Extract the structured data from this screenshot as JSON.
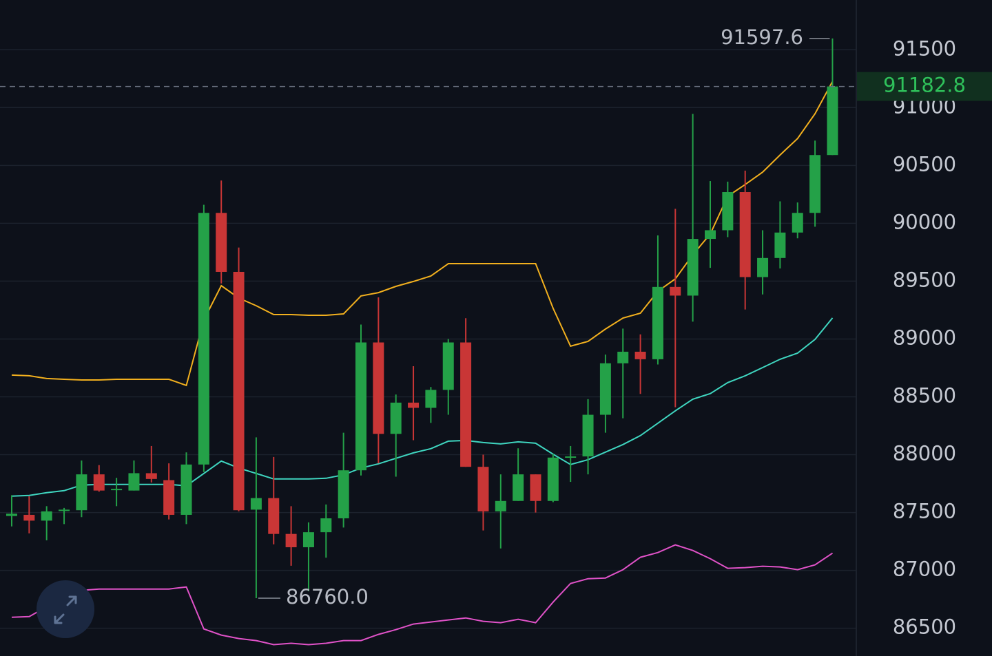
{
  "chart_data": {
    "type": "candlestick",
    "open": [
      87470,
      87480,
      87430,
      87520,
      87520,
      87830,
      87700,
      87690,
      87840,
      87780,
      87480,
      87915,
      90090,
      89580,
      87525,
      87625,
      87315,
      87200,
      87330,
      87450,
      87865,
      88970,
      88180,
      88450,
      88405,
      88560,
      88970,
      87895,
      87510,
      87600,
      87830,
      87600,
      87980,
      87985,
      88345,
      88790,
      88890,
      88825,
      89450,
      89375,
      89865,
      89940,
      90270,
      89535,
      89700,
      89920,
      90090,
      90590
    ],
    "high": [
      87650,
      87640,
      87555,
      87540,
      87950,
      87910,
      87800,
      87950,
      88075,
      87925,
      88020,
      90160,
      90370,
      89790,
      88150,
      87980,
      87555,
      87415,
      87570,
      88190,
      89125,
      89360,
      88520,
      88765,
      88585,
      89000,
      89180,
      88000,
      87830,
      88055,
      87830,
      88005,
      88075,
      88480,
      88865,
      89090,
      89040,
      89895,
      90125,
      90945,
      90365,
      90360,
      90455,
      89940,
      90190,
      90180,
      90715,
      91597.6
    ],
    "low": [
      87380,
      87320,
      87260,
      87400,
      87460,
      87680,
      87555,
      87690,
      87760,
      87440,
      87400,
      87850,
      89480,
      87510,
      86760,
      87225,
      87040,
      86820,
      87110,
      87370,
      87820,
      87925,
      87810,
      88125,
      88275,
      88345,
      87895,
      87345,
      87190,
      87600,
      87500,
      87590,
      87765,
      87830,
      88190,
      88315,
      88525,
      88780,
      88410,
      89150,
      89615,
      89880,
      89255,
      89385,
      89610,
      89870,
      89970,
      90590
    ],
    "close": [
      87490,
      87430,
      87510,
      87525,
      87830,
      87690,
      87705,
      87840,
      87790,
      87480,
      87915,
      90090,
      89580,
      87520,
      87625,
      87315,
      87200,
      87330,
      87450,
      87865,
      88970,
      88180,
      88450,
      88405,
      88560,
      88970,
      87895,
      87510,
      87600,
      87830,
      87600,
      87975,
      87985,
      88345,
      88790,
      88890,
      88825,
      89450,
      89375,
      89865,
      89940,
      90270,
      89535,
      89700,
      89920,
      90090,
      90590,
      91182.8
    ],
    "up_color": "#24a148",
    "down_color": "#c93636",
    "series": [
      {
        "color": "#f2b01e",
        "values": [
          88688,
          88682,
          88658,
          88652,
          88646,
          88646,
          88652,
          88652,
          88652,
          88652,
          88599,
          89164,
          89461,
          89354,
          89288,
          89211,
          89211,
          89205,
          89205,
          89217,
          89372,
          89401,
          89455,
          89497,
          89544,
          89651,
          89651,
          89651,
          89651,
          89651,
          89651,
          89265,
          88938,
          88979,
          89086,
          89181,
          89223,
          89413,
          89520,
          89728,
          89907,
          90234,
          90335,
          90442,
          90591,
          90733,
          90947,
          91227
        ]
      },
      {
        "color": "#3fd6c0",
        "values": [
          87642,
          87648,
          87671,
          87689,
          87737,
          87743,
          87743,
          87743,
          87743,
          87743,
          87731,
          87838,
          87945,
          87885,
          87838,
          87790,
          87790,
          87790,
          87796,
          87826,
          87885,
          87921,
          87969,
          88016,
          88052,
          88117,
          88123,
          88105,
          88093,
          88111,
          88099,
          88004,
          87915,
          87957,
          88022,
          88088,
          88165,
          88272,
          88379,
          88480,
          88528,
          88623,
          88682,
          88753,
          88825,
          88878,
          88997,
          89182
        ]
      },
      {
        "color": "#e052c8",
        "values": [
          86595,
          86601,
          86685,
          86726,
          86827,
          86839,
          86839,
          86839,
          86839,
          86839,
          86857,
          86494,
          86441,
          86411,
          86393,
          86358,
          86370,
          86358,
          86370,
          86393,
          86393,
          86447,
          86488,
          86536,
          86554,
          86572,
          86589,
          86560,
          86548,
          86578,
          86548,
          86726,
          86887,
          86928,
          86934,
          87006,
          87113,
          87154,
          87220,
          87172,
          87101,
          87018,
          87024,
          87036,
          87030,
          87006,
          87048,
          87149
        ]
      }
    ],
    "high_label": 91597.6,
    "low_label": {
      "value": 86760,
      "label": "86760.0"
    },
    "last_price": 91182.8,
    "ylim": [
      86260,
      91930
    ],
    "yticks": [
      86500,
      87000,
      87500,
      88000,
      88500,
      89000,
      89500,
      90000,
      90500,
      91000,
      91500
    ],
    "grid": true
  }
}
